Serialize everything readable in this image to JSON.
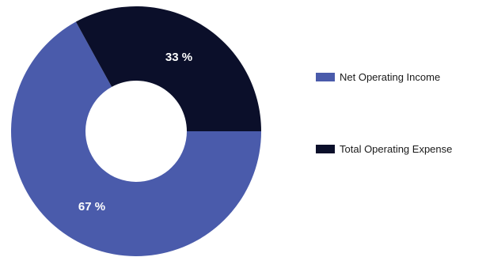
{
  "chart_data": {
    "type": "pie",
    "donut": true,
    "title": "",
    "categories": [
      "Net Operating Income",
      "Total Operating Expense"
    ],
    "values": [
      67,
      33
    ],
    "value_labels": [
      "67 %",
      "33 %"
    ],
    "colors": [
      "#4a5bab",
      "#0b0f2a"
    ],
    "legend_position": "right"
  }
}
